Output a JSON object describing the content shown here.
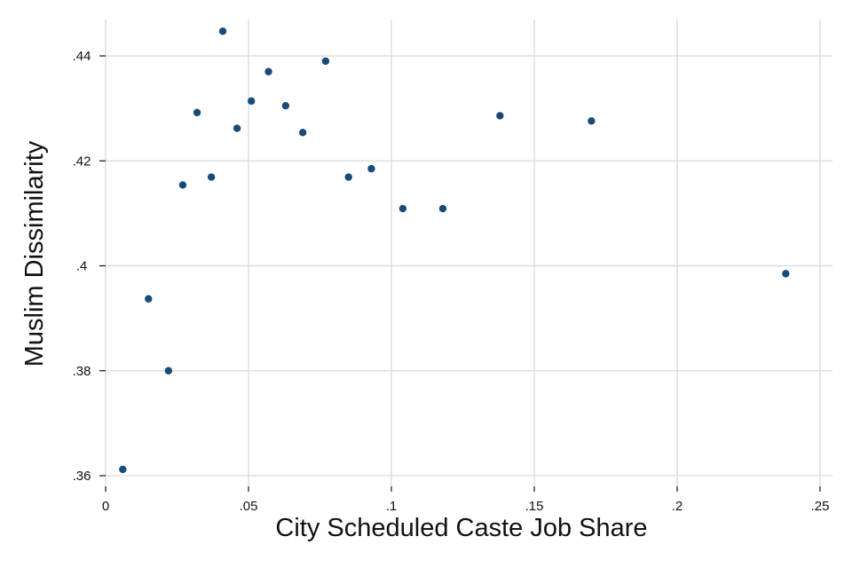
{
  "chart_data": {
    "type": "scatter",
    "title": "",
    "xlabel": "City Scheduled Caste Job Share",
    "ylabel": "Muslim Dissimilarity",
    "xlim": [
      0,
      0.25
    ],
    "ylim": [
      0.36,
      0.44
    ],
    "x_ticks": [
      {
        "value": 0,
        "label": "0"
      },
      {
        "value": 0.05,
        "label": ".05"
      },
      {
        "value": 0.1,
        "label": ".1"
      },
      {
        "value": 0.15,
        "label": ".15"
      },
      {
        "value": 0.2,
        "label": ".2"
      },
      {
        "value": 0.25,
        "label": ".25"
      }
    ],
    "y_ticks": [
      {
        "value": 0.36,
        "label": ".36"
      },
      {
        "value": 0.38,
        "label": ".38"
      },
      {
        "value": 0.4,
        "label": ".4"
      },
      {
        "value": 0.42,
        "label": ".42"
      },
      {
        "value": 0.44,
        "label": ".44"
      }
    ],
    "grid": true,
    "point_color": "#1a4a78",
    "points": [
      {
        "x": 0.006,
        "y": 0.3612
      },
      {
        "x": 0.015,
        "y": 0.3937
      },
      {
        "x": 0.022,
        "y": 0.38
      },
      {
        "x": 0.027,
        "y": 0.4154
      },
      {
        "x": 0.032,
        "y": 0.4292
      },
      {
        "x": 0.037,
        "y": 0.4169
      },
      {
        "x": 0.041,
        "y": 0.4447
      },
      {
        "x": 0.046,
        "y": 0.4262
      },
      {
        "x": 0.051,
        "y": 0.4314
      },
      {
        "x": 0.057,
        "y": 0.437
      },
      {
        "x": 0.063,
        "y": 0.4305
      },
      {
        "x": 0.069,
        "y": 0.4254
      },
      {
        "x": 0.077,
        "y": 0.439
      },
      {
        "x": 0.085,
        "y": 0.4169
      },
      {
        "x": 0.093,
        "y": 0.4185
      },
      {
        "x": 0.104,
        "y": 0.4109
      },
      {
        "x": 0.118,
        "y": 0.4109
      },
      {
        "x": 0.138,
        "y": 0.4286
      },
      {
        "x": 0.17,
        "y": 0.4276
      },
      {
        "x": 0.238,
        "y": 0.3985
      }
    ]
  }
}
